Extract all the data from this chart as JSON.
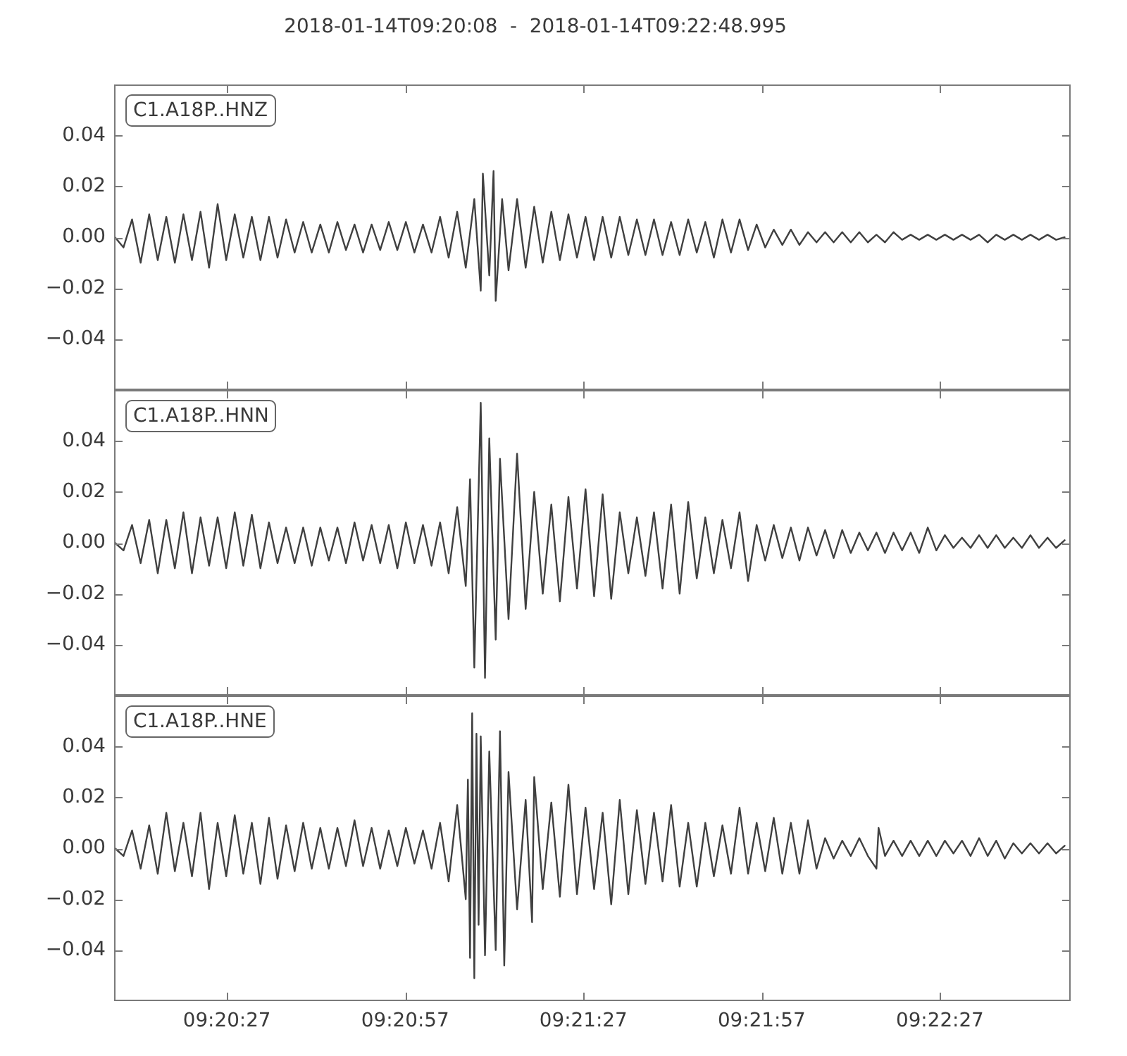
{
  "chart_data": [
    {
      "type": "line",
      "title": "2018-01-14T09:20:08  -  2018-01-14T09:22:48.995",
      "annotations": [
        "C1.A18P..HNZ"
      ],
      "tick_labels": "y",
      "xlim": [
        9.33556,
        9.38028
      ],
      "xticks": [
        {
          "value": 9.340833,
          "label": null
        },
        {
          "value": 9.349167,
          "label": null
        },
        {
          "value": 9.3575,
          "label": null
        },
        {
          "value": 9.365833,
          "label": null
        },
        {
          "value": 9.374167,
          "label": null
        }
      ],
      "ylim": [
        -0.06,
        0.06
      ],
      "yticks": [
        {
          "value": -0.04,
          "label": "−0.04"
        },
        {
          "value": -0.02,
          "label": "−0.02"
        },
        {
          "value": 0,
          "label": "0.00"
        },
        {
          "value": 0.02,
          "label": "0.02"
        },
        {
          "value": 0.04,
          "label": "0.04"
        }
      ],
      "x": [
        9.3356,
        9.336,
        9.3364,
        9.3368,
        9.3372,
        9.3376,
        9.338,
        9.3384,
        9.3388,
        9.3392,
        9.3396,
        9.34,
        9.3404,
        9.3408,
        9.3412,
        9.3416,
        9.342,
        9.3424,
        9.3428,
        9.3432,
        9.3436,
        9.344,
        9.3444,
        9.3448,
        9.3452,
        9.3456,
        9.346,
        9.3464,
        9.3468,
        9.3472,
        9.3476,
        9.348,
        9.3484,
        9.3488,
        9.3492,
        9.3496,
        9.35,
        9.3504,
        9.3508,
        9.3512,
        9.3516,
        9.352,
        9.3524,
        9.3527,
        9.3528,
        9.3531,
        9.3533,
        9.3534,
        9.3537,
        9.354,
        9.3544,
        9.3548,
        9.3552,
        9.3556,
        9.356,
        9.3564,
        9.3568,
        9.3572,
        9.3576,
        9.358,
        9.3584,
        9.3588,
        9.3592,
        9.3596,
        9.36,
        9.3604,
        9.3608,
        9.3612,
        9.3616,
        9.362,
        9.3624,
        9.3628,
        9.3632,
        9.3636,
        9.364,
        9.3644,
        9.3648,
        9.3652,
        9.3656,
        9.366,
        9.3664,
        9.3668,
        9.3672,
        9.3676,
        9.368,
        9.3684,
        9.3688,
        9.3692,
        9.3696,
        9.37,
        9.3704,
        9.3708,
        9.3712,
        9.3716,
        9.372,
        9.3724,
        9.3728,
        9.3732,
        9.3736,
        9.374,
        9.3744,
        9.3748,
        9.3752,
        9.3756,
        9.376,
        9.3764,
        9.3768,
        9.3772,
        9.3776,
        9.378,
        9.3784,
        9.3788,
        9.3792,
        9.3796,
        9.38
      ],
      "series": [
        {
          "color": "#404040",
          "values": [
            0.0,
            -0.004,
            0.007,
            -0.01,
            0.009,
            -0.009,
            0.008,
            -0.01,
            0.009,
            -0.009,
            0.01,
            -0.012,
            0.013,
            -0.009,
            0.009,
            -0.008,
            0.008,
            -0.009,
            0.008,
            -0.008,
            0.007,
            -0.006,
            0.006,
            -0.006,
            0.005,
            -0.006,
            0.006,
            -0.005,
            0.005,
            -0.006,
            0.005,
            -0.005,
            0.006,
            -0.005,
            0.006,
            -0.006,
            0.005,
            -0.006,
            0.008,
            -0.008,
            0.01,
            -0.012,
            0.015,
            -0.021,
            0.025,
            -0.015,
            0.026,
            -0.025,
            0.015,
            -0.013,
            0.015,
            -0.012,
            0.012,
            -0.01,
            0.01,
            -0.009,
            0.009,
            -0.008,
            0.008,
            -0.009,
            0.008,
            -0.008,
            0.008,
            -0.007,
            0.007,
            -0.007,
            0.007,
            -0.007,
            0.006,
            -0.007,
            0.007,
            -0.006,
            0.006,
            -0.008,
            0.007,
            -0.006,
            0.007,
            -0.005,
            0.005,
            -0.004,
            0.003,
            -0.003,
            0.003,
            -0.003,
            0.002,
            -0.002,
            0.002,
            -0.002,
            0.002,
            -0.002,
            0.002,
            -0.002,
            0.001,
            -0.002,
            0.002,
            -0.001,
            0.001,
            -0.001,
            0.001,
            -0.001,
            0.001,
            -0.001,
            0.001,
            -0.001,
            0.001,
            -0.002,
            0.001,
            -0.001,
            0.001,
            -0.001,
            0.001,
            -0.001,
            0.001,
            -0.001,
            0.0
          ]
        }
      ]
    },
    {
      "type": "line",
      "annotations": [
        "C1.A18P..HNN"
      ],
      "tick_labels": "y",
      "xlim": [
        9.33556,
        9.38028
      ],
      "xticks": [
        {
          "value": 9.340833,
          "label": null
        },
        {
          "value": 9.349167,
          "label": null
        },
        {
          "value": 9.3575,
          "label": null
        },
        {
          "value": 9.365833,
          "label": null
        },
        {
          "value": 9.374167,
          "label": null
        }
      ],
      "ylim": [
        -0.06,
        0.06
      ],
      "yticks": [
        {
          "value": -0.04,
          "label": "−0.04"
        },
        {
          "value": -0.02,
          "label": "−0.02"
        },
        {
          "value": 0,
          "label": "0.00"
        },
        {
          "value": 0.02,
          "label": "0.02"
        },
        {
          "value": 0.04,
          "label": "0.04"
        }
      ],
      "x": [
        9.3356,
        9.336,
        9.3364,
        9.3368,
        9.3372,
        9.3376,
        9.338,
        9.3384,
        9.3388,
        9.3392,
        9.3396,
        9.34,
        9.3404,
        9.3408,
        9.3412,
        9.3416,
        9.342,
        9.3424,
        9.3428,
        9.3432,
        9.3436,
        9.344,
        9.3444,
        9.3448,
        9.3452,
        9.3456,
        9.346,
        9.3464,
        9.3468,
        9.3472,
        9.3476,
        9.348,
        9.3484,
        9.3488,
        9.3492,
        9.3496,
        9.35,
        9.3504,
        9.3508,
        9.3512,
        9.3516,
        9.352,
        9.3522,
        9.3524,
        9.3527,
        9.3529,
        9.3531,
        9.3534,
        9.3536,
        9.354,
        9.3544,
        9.3548,
        9.3552,
        9.3556,
        9.356,
        9.3564,
        9.3568,
        9.3572,
        9.3576,
        9.358,
        9.3584,
        9.3588,
        9.3592,
        9.3596,
        9.36,
        9.3604,
        9.3608,
        9.3612,
        9.3616,
        9.362,
        9.3624,
        9.3628,
        9.3632,
        9.3636,
        9.364,
        9.3644,
        9.3648,
        9.3652,
        9.3656,
        9.366,
        9.3664,
        9.3668,
        9.3672,
        9.3676,
        9.368,
        9.3684,
        9.3688,
        9.3692,
        9.3696,
        9.37,
        9.3704,
        9.3708,
        9.3712,
        9.3716,
        9.372,
        9.3724,
        9.3728,
        9.3732,
        9.3736,
        9.374,
        9.3744,
        9.3748,
        9.3752,
        9.3756,
        9.376,
        9.3764,
        9.3768,
        9.3772,
        9.3776,
        9.378,
        9.3784,
        9.3788,
        9.3792,
        9.3796,
        9.38
      ],
      "series": [
        {
          "color": "#404040",
          "values": [
            0.0,
            -0.003,
            0.007,
            -0.008,
            0.009,
            -0.012,
            0.009,
            -0.01,
            0.012,
            -0.012,
            0.01,
            -0.009,
            0.01,
            -0.01,
            0.012,
            -0.009,
            0.011,
            -0.01,
            0.008,
            -0.008,
            0.006,
            -0.008,
            0.006,
            -0.009,
            0.006,
            -0.007,
            0.006,
            -0.008,
            0.008,
            -0.007,
            0.007,
            -0.008,
            0.007,
            -0.01,
            0.008,
            -0.008,
            0.007,
            -0.009,
            0.008,
            -0.012,
            0.014,
            -0.017,
            0.025,
            -0.049,
            0.055,
            -0.053,
            0.041,
            -0.038,
            0.033,
            -0.03,
            0.035,
            -0.026,
            0.02,
            -0.02,
            0.015,
            -0.023,
            0.018,
            -0.018,
            0.021,
            -0.021,
            0.019,
            -0.022,
            0.012,
            -0.012,
            0.01,
            -0.013,
            0.012,
            -0.018,
            0.015,
            -0.02,
            0.016,
            -0.014,
            0.01,
            -0.012,
            0.009,
            -0.01,
            0.012,
            -0.015,
            0.007,
            -0.007,
            0.007,
            -0.006,
            0.006,
            -0.007,
            0.006,
            -0.005,
            0.005,
            -0.006,
            0.005,
            -0.004,
            0.004,
            -0.003,
            0.004,
            -0.004,
            0.004,
            -0.003,
            0.004,
            -0.004,
            0.006,
            -0.003,
            0.003,
            -0.002,
            0.002,
            -0.002,
            0.003,
            -0.002,
            0.003,
            -0.002,
            0.002,
            -0.002,
            0.003,
            -0.002,
            0.002,
            -0.002,
            0.001
          ]
        }
      ]
    },
    {
      "type": "line",
      "annotations": [
        "C1.A18P..HNE"
      ],
      "xlim": [
        9.33556,
        9.38028
      ],
      "xticks": [
        {
          "value": 9.340833,
          "label": "09:20:27"
        },
        {
          "value": 9.349167,
          "label": "09:20:57"
        },
        {
          "value": 9.3575,
          "label": "09:21:27"
        },
        {
          "value": 9.365833,
          "label": "09:21:57"
        },
        {
          "value": 9.374167,
          "label": "09:22:27"
        }
      ],
      "ylim": [
        -0.06,
        0.06
      ],
      "yticks": [
        {
          "value": -0.04,
          "label": "−0.04"
        },
        {
          "value": -0.02,
          "label": "−0.02"
        },
        {
          "value": 0,
          "label": "0.00"
        },
        {
          "value": 0.02,
          "label": "0.02"
        },
        {
          "value": 0.04,
          "label": "0.04"
        }
      ],
      "x": [
        9.3356,
        9.336,
        9.3364,
        9.3368,
        9.3372,
        9.3376,
        9.338,
        9.3384,
        9.3388,
        9.3392,
        9.3396,
        9.34,
        9.3404,
        9.3408,
        9.3412,
        9.3416,
        9.342,
        9.3424,
        9.3428,
        9.3432,
        9.3436,
        9.344,
        9.3444,
        9.3448,
        9.3452,
        9.3456,
        9.346,
        9.3464,
        9.3468,
        9.3472,
        9.3476,
        9.348,
        9.3484,
        9.3488,
        9.3492,
        9.3496,
        9.35,
        9.3504,
        9.3508,
        9.3512,
        9.3516,
        9.352,
        9.3521,
        9.3522,
        9.3523,
        9.3524,
        9.3525,
        9.3526,
        9.3527,
        9.3529,
        9.3531,
        9.3534,
        9.3536,
        9.3538,
        9.354,
        9.3544,
        9.3548,
        9.3551,
        9.3552,
        9.3556,
        9.356,
        9.3564,
        9.3568,
        9.3572,
        9.3576,
        9.358,
        9.3584,
        9.3588,
        9.3592,
        9.3596,
        9.36,
        9.3604,
        9.3608,
        9.3612,
        9.3616,
        9.362,
        9.3624,
        9.3628,
        9.3632,
        9.3636,
        9.364,
        9.3644,
        9.3648,
        9.3652,
        9.3656,
        9.366,
        9.3664,
        9.3668,
        9.3672,
        9.3676,
        9.368,
        9.3684,
        9.3688,
        9.3692,
        9.3696,
        9.37,
        9.3704,
        9.3708,
        9.3712,
        9.3713,
        9.3716,
        9.372,
        9.3724,
        9.3728,
        9.3732,
        9.3736,
        9.374,
        9.3744,
        9.3748,
        9.3752,
        9.3756,
        9.376,
        9.3764,
        9.3768,
        9.3772,
        9.3776,
        9.378,
        9.3784,
        9.3788,
        9.3792,
        9.3796,
        9.38
      ],
      "series": [
        {
          "color": "#404040",
          "values": [
            0.0,
            -0.003,
            0.007,
            -0.008,
            0.009,
            -0.01,
            0.014,
            -0.009,
            0.01,
            -0.011,
            0.014,
            -0.016,
            0.01,
            -0.011,
            0.013,
            -0.01,
            0.01,
            -0.014,
            0.012,
            -0.012,
            0.009,
            -0.009,
            0.01,
            -0.008,
            0.008,
            -0.008,
            0.008,
            -0.007,
            0.011,
            -0.007,
            0.008,
            -0.008,
            0.007,
            -0.007,
            0.008,
            -0.006,
            0.007,
            -0.008,
            0.01,
            -0.013,
            0.017,
            -0.02,
            0.027,
            -0.043,
            0.053,
            -0.051,
            0.045,
            -0.03,
            0.044,
            -0.042,
            0.038,
            -0.04,
            0.046,
            -0.046,
            0.03,
            -0.024,
            0.019,
            -0.029,
            0.028,
            -0.016,
            0.018,
            -0.019,
            0.025,
            -0.018,
            0.016,
            -0.016,
            0.014,
            -0.022,
            0.019,
            -0.018,
            0.015,
            -0.014,
            0.014,
            -0.013,
            0.017,
            -0.015,
            0.01,
            -0.015,
            0.01,
            -0.011,
            0.009,
            -0.01,
            0.016,
            -0.01,
            0.01,
            -0.009,
            0.012,
            -0.01,
            0.01,
            -0.01,
            0.011,
            -0.008,
            0.004,
            -0.004,
            0.003,
            -0.003,
            0.004,
            -0.003,
            -0.008,
            0.008,
            -0.003,
            0.003,
            -0.003,
            0.003,
            -0.003,
            0.003,
            -0.003,
            0.003,
            -0.002,
            0.003,
            -0.003,
            0.004,
            -0.003,
            0.003,
            -0.004,
            0.002,
            -0.002,
            0.002,
            -0.002,
            0.002,
            -0.002,
            0.001
          ]
        }
      ]
    }
  ]
}
